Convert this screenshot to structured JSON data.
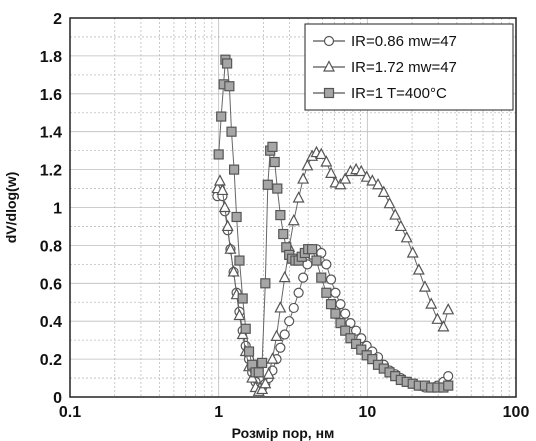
{
  "chart_data": {
    "type": "scatter",
    "xscale": "log",
    "xlim": [
      0.1,
      100
    ],
    "ylim": [
      0,
      2
    ],
    "xlabel": "Розмір пор, нм",
    "ylabel": "dV/dlog(w)",
    "grid": true,
    "legend_position": "top-right",
    "x_tick_labels": [
      "0.1",
      "1",
      "10",
      "100"
    ],
    "y_tick_labels": [
      "0",
      "0.2",
      "0.4",
      "0.6",
      "0.8",
      "1",
      "1.2",
      "1.4",
      "1.6",
      "1.8",
      "2"
    ],
    "series": [
      {
        "name": "IR=0.86 mw=47",
        "marker": "circle",
        "fill": "#ffffff",
        "stroke": "#555555",
        "points": [
          [
            0.98,
            1.06
          ],
          [
            1.02,
            1.1
          ],
          [
            1.06,
            1.06
          ],
          [
            1.1,
            0.98
          ],
          [
            1.15,
            0.88
          ],
          [
            1.2,
            0.78
          ],
          [
            1.26,
            0.66
          ],
          [
            1.32,
            0.55
          ],
          [
            1.38,
            0.45
          ],
          [
            1.45,
            0.35
          ],
          [
            1.52,
            0.27
          ],
          [
            1.6,
            0.2
          ],
          [
            1.68,
            0.13
          ],
          [
            1.77,
            0.08
          ],
          [
            1.86,
            0.05
          ],
          [
            1.96,
            0.05
          ],
          [
            2.06,
            0.07
          ],
          [
            2.17,
            0.1
          ],
          [
            2.3,
            0.14
          ],
          [
            2.45,
            0.2
          ],
          [
            2.6,
            0.26
          ],
          [
            2.78,
            0.33
          ],
          [
            2.98,
            0.4
          ],
          [
            3.2,
            0.47
          ],
          [
            3.45,
            0.55
          ],
          [
            3.7,
            0.63
          ],
          [
            3.95,
            0.7
          ],
          [
            4.25,
            0.75
          ],
          [
            4.55,
            0.78
          ],
          [
            4.9,
            0.76
          ],
          [
            5.3,
            0.7
          ],
          [
            5.7,
            0.62
          ],
          [
            6.1,
            0.55
          ],
          [
            6.6,
            0.49
          ],
          [
            7.1,
            0.44
          ],
          [
            7.7,
            0.39
          ],
          [
            8.4,
            0.35
          ],
          [
            9.1,
            0.31
          ],
          [
            9.9,
            0.27
          ],
          [
            10.8,
            0.24
          ],
          [
            11.8,
            0.21
          ],
          [
            12.9,
            0.17
          ],
          [
            14.1,
            0.14
          ],
          [
            15.4,
            0.12
          ],
          [
            16.8,
            0.1
          ],
          [
            18.4,
            0.08
          ],
          [
            20.2,
            0.07
          ],
          [
            22.2,
            0.06
          ],
          [
            24.4,
            0.05
          ],
          [
            26.9,
            0.05
          ],
          [
            29.6,
            0.06
          ],
          [
            32.5,
            0.08
          ],
          [
            35,
            0.11
          ]
        ]
      },
      {
        "name": "IR=1.72 mw=47",
        "marker": "triangle",
        "fill": "#ffffff",
        "stroke": "#555555",
        "points": [
          [
            0.98,
            1.1
          ],
          [
            1.02,
            1.14
          ],
          [
            1.06,
            1.09
          ],
          [
            1.1,
            1.0
          ],
          [
            1.15,
            0.9
          ],
          [
            1.2,
            0.78
          ],
          [
            1.26,
            0.66
          ],
          [
            1.32,
            0.54
          ],
          [
            1.38,
            0.43
          ],
          [
            1.45,
            0.33
          ],
          [
            1.52,
            0.24
          ],
          [
            1.6,
            0.16
          ],
          [
            1.68,
            0.1
          ],
          [
            1.77,
            0.05
          ],
          [
            1.86,
            0.03
          ],
          [
            1.96,
            0.04
          ],
          [
            2.06,
            0.07
          ],
          [
            2.17,
            0.12
          ],
          [
            2.3,
            0.2
          ],
          [
            2.45,
            0.32
          ],
          [
            2.6,
            0.47
          ],
          [
            2.78,
            0.63
          ],
          [
            2.98,
            0.79
          ],
          [
            3.2,
            0.93
          ],
          [
            3.45,
            1.05
          ],
          [
            3.7,
            1.15
          ],
          [
            3.95,
            1.22
          ],
          [
            4.25,
            1.27
          ],
          [
            4.55,
            1.29
          ],
          [
            4.9,
            1.28
          ],
          [
            5.3,
            1.24
          ],
          [
            5.7,
            1.18
          ],
          [
            6.1,
            1.13
          ],
          [
            6.6,
            1.12
          ],
          [
            7.1,
            1.15
          ],
          [
            7.7,
            1.19
          ],
          [
            8.4,
            1.2
          ],
          [
            9.1,
            1.19
          ],
          [
            9.9,
            1.16
          ],
          [
            10.8,
            1.14
          ],
          [
            11.8,
            1.12
          ],
          [
            12.9,
            1.08
          ],
          [
            14.1,
            1.02
          ],
          [
            15.4,
            0.96
          ],
          [
            16.8,
            0.9
          ],
          [
            18.4,
            0.84
          ],
          [
            20.2,
            0.76
          ],
          [
            22.2,
            0.67
          ],
          [
            24.4,
            0.58
          ],
          [
            26.9,
            0.49
          ],
          [
            29.6,
            0.41
          ],
          [
            32.5,
            0.37
          ],
          [
            35,
            0.46
          ]
        ]
      },
      {
        "name": "IR=1 T=400°C",
        "marker": "square",
        "fill": "#a6a6a6",
        "stroke": "#555555",
        "points": [
          [
            1.0,
            1.28
          ],
          [
            1.04,
            1.48
          ],
          [
            1.08,
            1.65
          ],
          [
            1.11,
            1.78
          ],
          [
            1.14,
            1.76
          ],
          [
            1.18,
            1.64
          ],
          [
            1.22,
            1.4
          ],
          [
            1.27,
            1.2
          ],
          [
            1.32,
            0.95
          ],
          [
            1.38,
            0.72
          ],
          [
            1.45,
            0.52
          ],
          [
            1.52,
            0.36
          ],
          [
            1.6,
            0.24
          ],
          [
            1.68,
            0.17
          ],
          [
            1.77,
            0.13
          ],
          [
            1.86,
            0.13
          ],
          [
            1.96,
            0.18
          ],
          [
            2.06,
            0.6
          ],
          [
            2.14,
            1.12
          ],
          [
            2.22,
            1.3
          ],
          [
            2.3,
            1.32
          ],
          [
            2.38,
            1.24
          ],
          [
            2.48,
            1.1
          ],
          [
            2.6,
            0.96
          ],
          [
            2.72,
            0.86
          ],
          [
            2.85,
            0.79
          ],
          [
            2.98,
            0.75
          ],
          [
            3.12,
            0.73
          ],
          [
            3.28,
            0.72
          ],
          [
            3.45,
            0.72
          ],
          [
            3.62,
            0.74
          ],
          [
            3.8,
            0.76
          ],
          [
            4.0,
            0.78
          ],
          [
            4.25,
            0.78
          ],
          [
            4.55,
            0.72
          ],
          [
            4.9,
            0.63
          ],
          [
            5.3,
            0.55
          ],
          [
            5.7,
            0.49
          ],
          [
            6.1,
            0.44
          ],
          [
            6.6,
            0.39
          ],
          [
            7.1,
            0.35
          ],
          [
            7.7,
            0.31
          ],
          [
            8.4,
            0.28
          ],
          [
            9.1,
            0.25
          ],
          [
            9.9,
            0.22
          ],
          [
            10.8,
            0.2
          ],
          [
            11.8,
            0.17
          ],
          [
            12.9,
            0.15
          ],
          [
            14.1,
            0.13
          ],
          [
            15.4,
            0.11
          ],
          [
            16.8,
            0.09
          ],
          [
            18.4,
            0.08
          ],
          [
            20.2,
            0.07
          ],
          [
            22.2,
            0.06
          ],
          [
            24.4,
            0.06
          ],
          [
            26.9,
            0.05
          ],
          [
            29.6,
            0.05
          ],
          [
            32.5,
            0.05
          ],
          [
            35,
            0.06
          ]
        ]
      }
    ]
  }
}
